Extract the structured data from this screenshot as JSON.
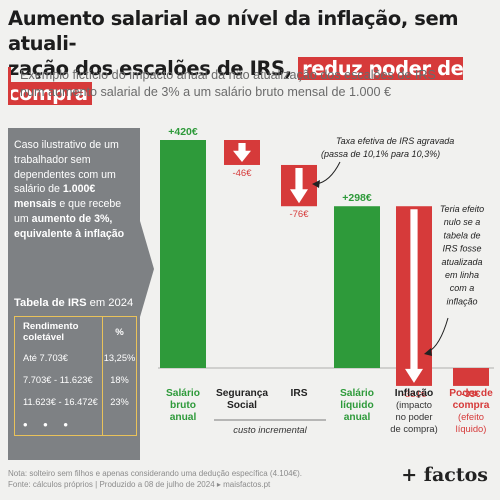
{
  "title": {
    "line1": "Aumento salarial ao nível da inflação, sem atuali-",
    "line2": "zação dos escalões de IRS, ",
    "highlight": "reduz poder de compra"
  },
  "subtitle": {
    "line1": "Exemplo fictício do impacto anual da não atualização dos escalões de IRS",
    "line2": "num aumento salarial de 3% a um salário bruto mensal de 1.000 €"
  },
  "side_panel": {
    "parts": [
      {
        "text": "Caso ilustrativo de um trabalhador sem dependentes com um salário de ",
        "bold": false
      },
      {
        "text": "1.000€ mensais",
        "bold": true
      },
      {
        "text": " e que recebe um ",
        "bold": false
      },
      {
        "text": "aumento de 3%, equivalente à inflação",
        "bold": true
      }
    ],
    "table_title_bold": "Tabela de IRS",
    "table_title_rest": " em 2024",
    "table_header": [
      "Rendimento coletável",
      "%"
    ],
    "table_rows": [
      [
        "Até 7.703€",
        "13,25%"
      ],
      [
        "7.703€ - 11.623€",
        "18%"
      ],
      [
        "11.623€ - 16.472€",
        "23%"
      ]
    ],
    "table_more": "• • •"
  },
  "chart_data": {
    "type": "waterfall",
    "unit": "€",
    "steps": [
      {
        "label": "Salário bruto anual",
        "value": 420,
        "display": "+420€",
        "kind": "total",
        "color": "#2e9a3a"
      },
      {
        "label": "Segurança Social",
        "value": -46,
        "display": "-46€",
        "kind": "delta",
        "color": "#d63a3a"
      },
      {
        "label": "IRS",
        "value": -76,
        "display": "-76€",
        "kind": "delta",
        "color": "#d63a3a"
      },
      {
        "label": "Salário líquido anual",
        "value": 298,
        "display": "+298€",
        "kind": "total",
        "color": "#2e9a3a"
      },
      {
        "label": "Inflação (impacto no poder de compra)",
        "value": -331,
        "display": "-331€",
        "kind": "delta",
        "color": "#d63a3a"
      },
      {
        "label": "Poder de compra (efeito líquido)",
        "value": -33,
        "display": "-33€",
        "kind": "total",
        "color": "#d63a3a"
      }
    ],
    "group_note": "custo incremental",
    "annotations": [
      {
        "target": "IRS",
        "text": "Taxa efetiva de IRS agravada (passa de 10,1% para 10,3%)"
      },
      {
        "target": "Inflação",
        "text": "Teria efeito nulo se a tabela de IRS fosse atualizada em linha com a inflação"
      }
    ]
  },
  "footnote": {
    "line1": "Nota: solteiro sem filhos e apenas considerando uma dedução específica (4.104€).",
    "line2": "Fonte: cálculos próprios | Produzido a 08 de julho de 2024 ▸ maisfactos.pt"
  },
  "logo": "+ factos"
}
